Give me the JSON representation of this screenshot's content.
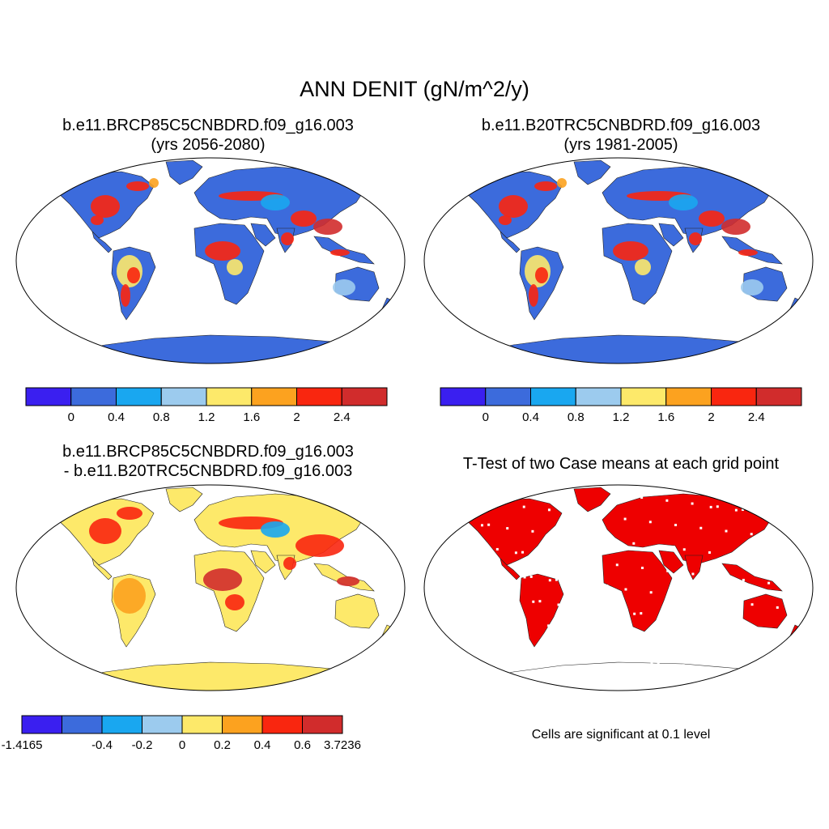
{
  "main_title": "ANN DENIT (gN/m^2/y)",
  "panels": [
    {
      "title_line1": "b.e11.BRCP85C5CNBDRD.f09_g16.003",
      "title_line2": "(yrs 2056-2080)"
    },
    {
      "title_line1": "b.e11.B20TRC5CNBDRD.f09_g16.003",
      "title_line2": "(yrs 1981-2005)"
    },
    {
      "title_line1": "b.e11.BRCP85C5CNBDRD.f09_g16.003",
      "title_line2": "- b.e11.B20TRC5CNBDRD.f09_g16.003"
    },
    {
      "title_line1": "T-Test of two Case means at each grid point",
      "title_line2": ""
    }
  ],
  "colorbar_abs": {
    "colors": [
      "#3a1ff0",
      "#3c6bdc",
      "#19a7f0",
      "#9ccbee",
      "#fde96a",
      "#fca21f",
      "#f9260f",
      "#d12c2c"
    ],
    "tick_labels": [
      "0",
      "0.4",
      "0.8",
      "1.2",
      "1.6",
      "2",
      "2.4"
    ]
  },
  "colorbar_diff": {
    "colors": [
      "#3a1ff0",
      "#3c6bdc",
      "#19a7f0",
      "#9ccbee",
      "#fde96a",
      "#fca21f",
      "#f9260f",
      "#d12c2c"
    ],
    "tick_labels": [
      "-1.4165",
      "-0.4",
      "-0.2",
      "0",
      "0.2",
      "0.4",
      "0.6",
      "3.7236"
    ]
  },
  "significance_color": "#ee0000",
  "significance_note": "Cells are significant at 0.1 level"
}
